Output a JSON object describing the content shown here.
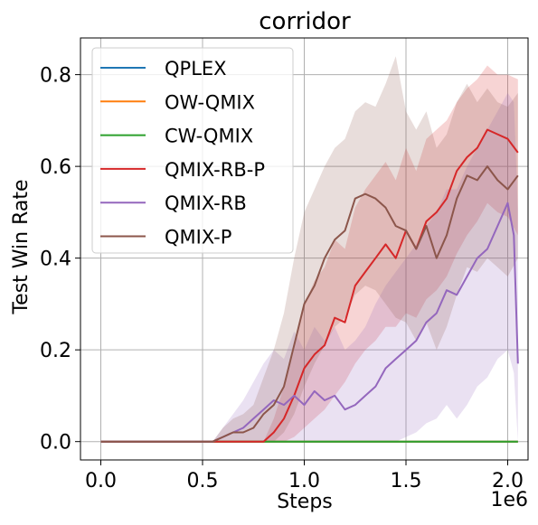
{
  "chart_data": {
    "type": "line",
    "title": "corridor",
    "xlabel": "Steps",
    "ylabel": "Test Win Rate",
    "x_offset_label": "1e6",
    "xlim": [
      -0.1,
      2.1
    ],
    "ylim": [
      -0.04,
      0.88
    ],
    "xticks": [
      0.0,
      0.5,
      1.0,
      1.5,
      2.0
    ],
    "xtick_labels": [
      "0.0",
      "0.5",
      "1.0",
      "1.5",
      "2.0"
    ],
    "yticks": [
      0.0,
      0.2,
      0.4,
      0.6,
      0.8
    ],
    "ytick_labels": [
      "0.0",
      "0.2",
      "0.4",
      "0.6",
      "0.8"
    ],
    "grid": true,
    "legend_position": "upper-left",
    "series": [
      {
        "name": "QPLEX",
        "color": "#1f77b4",
        "x": [
          0,
          2.05
        ],
        "y": [
          0,
          0
        ]
      },
      {
        "name": "OW-QMIX",
        "color": "#ff7f0e",
        "x": [
          0,
          2.05
        ],
        "y": [
          0,
          0
        ]
      },
      {
        "name": "CW-QMIX",
        "color": "#2ca02c",
        "x": [
          0,
          2.05
        ],
        "y": [
          0,
          0
        ]
      },
      {
        "name": "QMIX-RB-P",
        "color": "#d62728",
        "x": [
          0,
          0.8,
          0.85,
          0.9,
          0.95,
          1.0,
          1.05,
          1.1,
          1.15,
          1.2,
          1.25,
          1.3,
          1.35,
          1.4,
          1.45,
          1.5,
          1.55,
          1.6,
          1.65,
          1.7,
          1.75,
          1.8,
          1.85,
          1.9,
          1.95,
          2.0,
          2.05
        ],
        "y": [
          0,
          0,
          0.02,
          0.05,
          0.1,
          0.16,
          0.19,
          0.21,
          0.27,
          0.26,
          0.34,
          0.37,
          0.4,
          0.43,
          0.4,
          0.46,
          0.42,
          0.48,
          0.5,
          0.53,
          0.59,
          0.62,
          0.64,
          0.68,
          0.67,
          0.66,
          0.63
        ],
        "band_low": [
          0,
          0,
          0,
          0,
          0.01,
          0.03,
          0.05,
          0.07,
          0.1,
          0.13,
          0.17,
          0.2,
          0.22,
          0.25,
          0.25,
          0.28,
          0.27,
          0.31,
          0.33,
          0.36,
          0.41,
          0.45,
          0.48,
          0.52,
          0.5,
          0.49,
          0.45
        ],
        "band_high": [
          0,
          0,
          0.05,
          0.12,
          0.2,
          0.3,
          0.35,
          0.38,
          0.44,
          0.42,
          0.51,
          0.55,
          0.58,
          0.61,
          0.57,
          0.64,
          0.59,
          0.66,
          0.68,
          0.7,
          0.74,
          0.77,
          0.79,
          0.82,
          0.8,
          0.8,
          0.79
        ]
      },
      {
        "name": "QMIX-RB",
        "color": "#9467bd",
        "x": [
          0,
          0.55,
          0.6,
          0.65,
          0.7,
          0.75,
          0.8,
          0.85,
          0.9,
          0.95,
          1.0,
          1.05,
          1.1,
          1.15,
          1.2,
          1.25,
          1.3,
          1.35,
          1.4,
          1.45,
          1.5,
          1.55,
          1.6,
          1.65,
          1.7,
          1.75,
          1.8,
          1.85,
          1.9,
          1.95,
          2.0,
          2.03,
          2.05
        ],
        "y": [
          0,
          0,
          0.01,
          0.02,
          0.03,
          0.05,
          0.07,
          0.09,
          0.08,
          0.1,
          0.08,
          0.11,
          0.09,
          0.1,
          0.07,
          0.08,
          0.1,
          0.12,
          0.16,
          0.18,
          0.2,
          0.22,
          0.26,
          0.28,
          0.33,
          0.32,
          0.36,
          0.4,
          0.42,
          0.47,
          0.52,
          0.45,
          0.17
        ],
        "band_low": [
          0,
          0,
          0,
          0,
          0,
          0,
          0,
          0,
          0,
          0,
          0,
          0,
          0,
          0,
          0,
          0,
          0,
          0,
          0,
          0,
          0.01,
          0.02,
          0.04,
          0.05,
          0.08,
          0.05,
          0.08,
          0.12,
          0.14,
          0.18,
          0.2,
          0.15,
          0.0
        ],
        "band_high": [
          0,
          0,
          0.03,
          0.06,
          0.09,
          0.13,
          0.17,
          0.2,
          0.18,
          0.24,
          0.2,
          0.25,
          0.22,
          0.25,
          0.2,
          0.22,
          0.25,
          0.3,
          0.34,
          0.37,
          0.4,
          0.43,
          0.47,
          0.5,
          0.55,
          0.55,
          0.6,
          0.64,
          0.68,
          0.72,
          0.76,
          0.74,
          0.5
        ]
      },
      {
        "name": "QMIX-P",
        "color": "#8c564b",
        "x": [
          0,
          0.55,
          0.6,
          0.65,
          0.7,
          0.75,
          0.8,
          0.85,
          0.9,
          0.95,
          1.0,
          1.05,
          1.1,
          1.15,
          1.2,
          1.25,
          1.3,
          1.35,
          1.4,
          1.45,
          1.5,
          1.55,
          1.6,
          1.65,
          1.7,
          1.75,
          1.8,
          1.85,
          1.9,
          1.95,
          2.0,
          2.05
        ],
        "y": [
          0,
          0,
          0.01,
          0.02,
          0.02,
          0.03,
          0.06,
          0.08,
          0.12,
          0.21,
          0.3,
          0.34,
          0.4,
          0.44,
          0.46,
          0.53,
          0.54,
          0.53,
          0.51,
          0.47,
          0.46,
          0.42,
          0.47,
          0.4,
          0.45,
          0.53,
          0.58,
          0.57,
          0.6,
          0.57,
          0.55,
          0.58
        ],
        "band_low": [
          0,
          0,
          0,
          0,
          0,
          0,
          0,
          0,
          0.02,
          0.06,
          0.12,
          0.17,
          0.21,
          0.25,
          0.27,
          0.32,
          0.34,
          0.33,
          0.3,
          0.27,
          0.26,
          0.22,
          0.26,
          0.2,
          0.25,
          0.32,
          0.38,
          0.37,
          0.4,
          0.38,
          0.36,
          0.4
        ],
        "band_high": [
          0,
          0,
          0.03,
          0.05,
          0.06,
          0.08,
          0.14,
          0.2,
          0.28,
          0.4,
          0.5,
          0.55,
          0.6,
          0.64,
          0.66,
          0.72,
          0.74,
          0.73,
          0.78,
          0.84,
          0.72,
          0.68,
          0.72,
          0.64,
          0.67,
          0.74,
          0.78,
          0.74,
          0.77,
          0.74,
          0.73,
          0.76
        ]
      }
    ]
  }
}
